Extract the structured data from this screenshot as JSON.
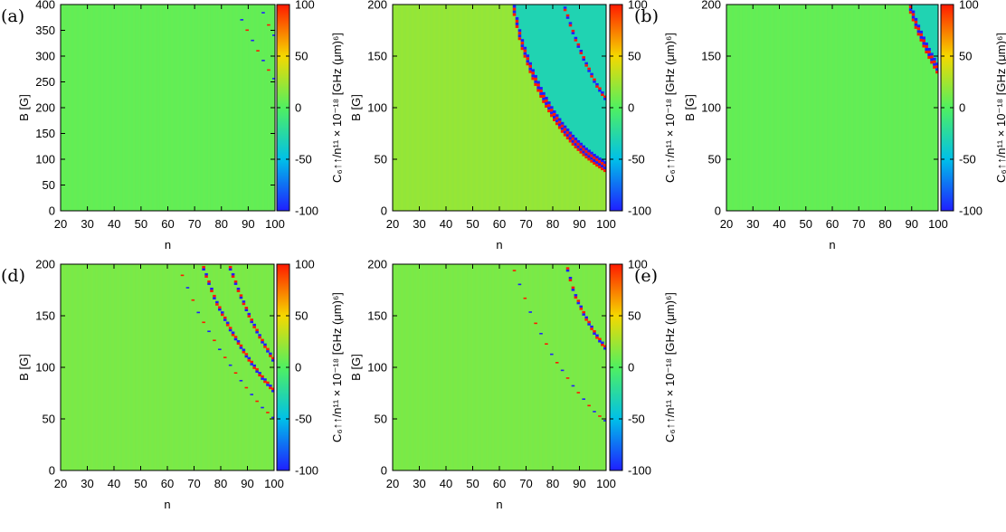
{
  "chart_data": [
    {
      "type": "heatmap",
      "panel_label": "(a)",
      "xlabel": "n",
      "ylabel": "B [G]",
      "colorbar_label": "C₆↑↑/n¹¹ × 10⁻¹⁸ [GHz (μm)⁶]",
      "x_ticks": [
        "20",
        "30",
        "40",
        "50",
        "60",
        "70",
        "80",
        "90",
        "100"
      ],
      "y_ticks": [
        "0",
        "50",
        "100",
        "150",
        "200",
        "250",
        "300",
        "350",
        "400"
      ],
      "colorbar_ticks": [
        "-100",
        "-50",
        "0",
        "50",
        "100"
      ],
      "xlim": [
        20,
        100
      ],
      "ylim": [
        0,
        400
      ],
      "zlim": [
        -100,
        100
      ],
      "background_value": 5,
      "features": [
        {
          "kind": "resonance",
          "n": [
            86,
            90,
            94,
            98,
            100
          ],
          "B": [
            385,
            345,
            305,
            268,
            252
          ],
          "strength": "weak"
        },
        {
          "kind": "resonance",
          "n": [
            95,
            97,
            100
          ],
          "B": [
            390,
            365,
            335
          ],
          "strength": "weak"
        }
      ]
    },
    {
      "type": "heatmap",
      "panel_label": "(b)",
      "xlabel": "n",
      "ylabel": "B [G]",
      "colorbar_label": "C₆↑↑/n¹¹ × 10⁻¹⁸ [GHz (μm)⁶]",
      "x_ticks": [
        "20",
        "30",
        "40",
        "50",
        "60",
        "70",
        "80",
        "90",
        "100"
      ],
      "y_ticks": [
        "0",
        "50",
        "100",
        "150",
        "200"
      ],
      "colorbar_ticks": [
        "-100",
        "-50",
        "0",
        "50",
        "100"
      ],
      "xlim": [
        20,
        100
      ],
      "ylim": [
        0,
        200
      ],
      "zlim": [
        -100,
        100
      ],
      "background_value": 20,
      "features": [
        {
          "kind": "resonance",
          "n": [
            65,
            68,
            72,
            76,
            80,
            84,
            88,
            92,
            96,
            100
          ],
          "B": [
            200,
            165,
            135,
            112,
            94,
            79,
            67,
            57,
            49,
            42
          ],
          "strength": "strong",
          "region_above": -30
        },
        {
          "kind": "resonance",
          "n": [
            84,
            88,
            92,
            96,
            100
          ],
          "B": [
            200,
            170,
            145,
            124,
            108
          ],
          "strength": "medium"
        }
      ]
    },
    {
      "type": "heatmap",
      "panel_label": "(c)",
      "xlabel": "n",
      "ylabel": "B [G]",
      "colorbar_label": "C₆↑↑/n¹¹ × 10⁻¹⁸ [GHz (μm)⁶]",
      "x_ticks": [
        "20",
        "30",
        "40",
        "50",
        "60",
        "70",
        "80",
        "90",
        "100"
      ],
      "y_ticks": [
        "0",
        "50",
        "100",
        "150",
        "200"
      ],
      "colorbar_ticks": [
        "-100",
        "-50",
        "0",
        "50",
        "100"
      ],
      "xlim": [
        20,
        100
      ],
      "ylim": [
        0,
        200
      ],
      "zlim": [
        -100,
        100
      ],
      "background_value": 5,
      "features": [
        {
          "kind": "resonance",
          "n": [
            89,
            92,
            96,
            100
          ],
          "B": [
            200,
            178,
            155,
            136
          ],
          "strength": "strong",
          "region_above": -30
        }
      ]
    },
    {
      "type": "heatmap",
      "panel_label": "(d)",
      "xlabel": "n",
      "ylabel": "B [G]",
      "colorbar_label": "C₆↑↑/n¹¹ × 10⁻¹⁸ [GHz (μm)⁶]",
      "x_ticks": [
        "20",
        "30",
        "40",
        "50",
        "60",
        "70",
        "80",
        "90",
        "100"
      ],
      "y_ticks": [
        "0",
        "50",
        "100",
        "150",
        "200"
      ],
      "colorbar_ticks": [
        "-100",
        "-50",
        "0",
        "50",
        "100"
      ],
      "xlim": [
        20,
        100
      ],
      "ylim": [
        0,
        200
      ],
      "zlim": [
        -100,
        100
      ],
      "background_value": 12,
      "features": [
        {
          "kind": "resonance",
          "n": [
            73,
            78,
            84,
            90,
            95,
            100
          ],
          "B": [
            200,
            165,
            135,
            110,
            92,
            77
          ],
          "strength": "medium"
        },
        {
          "kind": "resonance",
          "n": [
            83,
            87,
            91,
            95,
            100
          ],
          "B": [
            200,
            172,
            148,
            128,
            106
          ],
          "strength": "medium"
        },
        {
          "kind": "resonance",
          "n": [
            65,
            72,
            80,
            88,
            95,
            100
          ],
          "B": [
            192,
            150,
            115,
            85,
            62,
            50
          ],
          "strength": "weak"
        }
      ]
    },
    {
      "type": "heatmap",
      "panel_label": "(e)",
      "xlabel": "n",
      "ylabel": "B [G]",
      "colorbar_label": "C₆↑↑/n¹¹ × 10⁻¹⁸ [GHz (μm)⁶]",
      "x_ticks": [
        "20",
        "30",
        "40",
        "50",
        "60",
        "70",
        "80",
        "90",
        "100"
      ],
      "y_ticks": [
        "0",
        "50",
        "100",
        "150",
        "200"
      ],
      "colorbar_ticks": [
        "-100",
        "-50",
        "0",
        "50",
        "100"
      ],
      "xlim": [
        20,
        100
      ],
      "ylim": [
        0,
        200
      ],
      "zlim": [
        -100,
        100
      ],
      "background_value": 12,
      "features": [
        {
          "kind": "resonance",
          "n": [
            85,
            88,
            92,
            96,
            100
          ],
          "B": [
            200,
            172,
            150,
            132,
            118
          ],
          "strength": "medium"
        },
        {
          "kind": "resonance",
          "n": [
            65,
            72,
            80,
            88,
            95,
            100
          ],
          "B": [
            197,
            150,
            110,
            80,
            58,
            47
          ],
          "strength": "weak"
        }
      ]
    }
  ]
}
